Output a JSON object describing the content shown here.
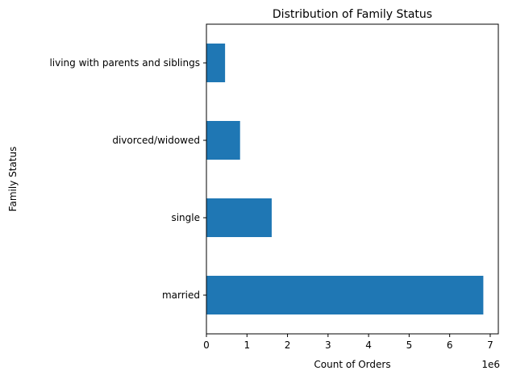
{
  "chart_data": {
    "type": "bar",
    "orientation": "horizontal",
    "title": "Distribution of Family Status",
    "xlabel": "Count of Orders",
    "ylabel": "Family Status",
    "x_scale_label": "1e6",
    "categories": [
      "married",
      "single",
      "divorced/widowed",
      "living with parents and siblings"
    ],
    "values": [
      6830000,
      1610000,
      830000,
      460000
    ],
    "xlim": [
      0,
      7200000
    ],
    "xticks": [
      0,
      1000000,
      2000000,
      3000000,
      4000000,
      5000000,
      6000000,
      7000000
    ],
    "xtick_labels": [
      "0",
      "1",
      "2",
      "3",
      "4",
      "5",
      "6",
      "7"
    ],
    "bar_color": "#1f77b4",
    "grid": false,
    "legend": "none"
  }
}
